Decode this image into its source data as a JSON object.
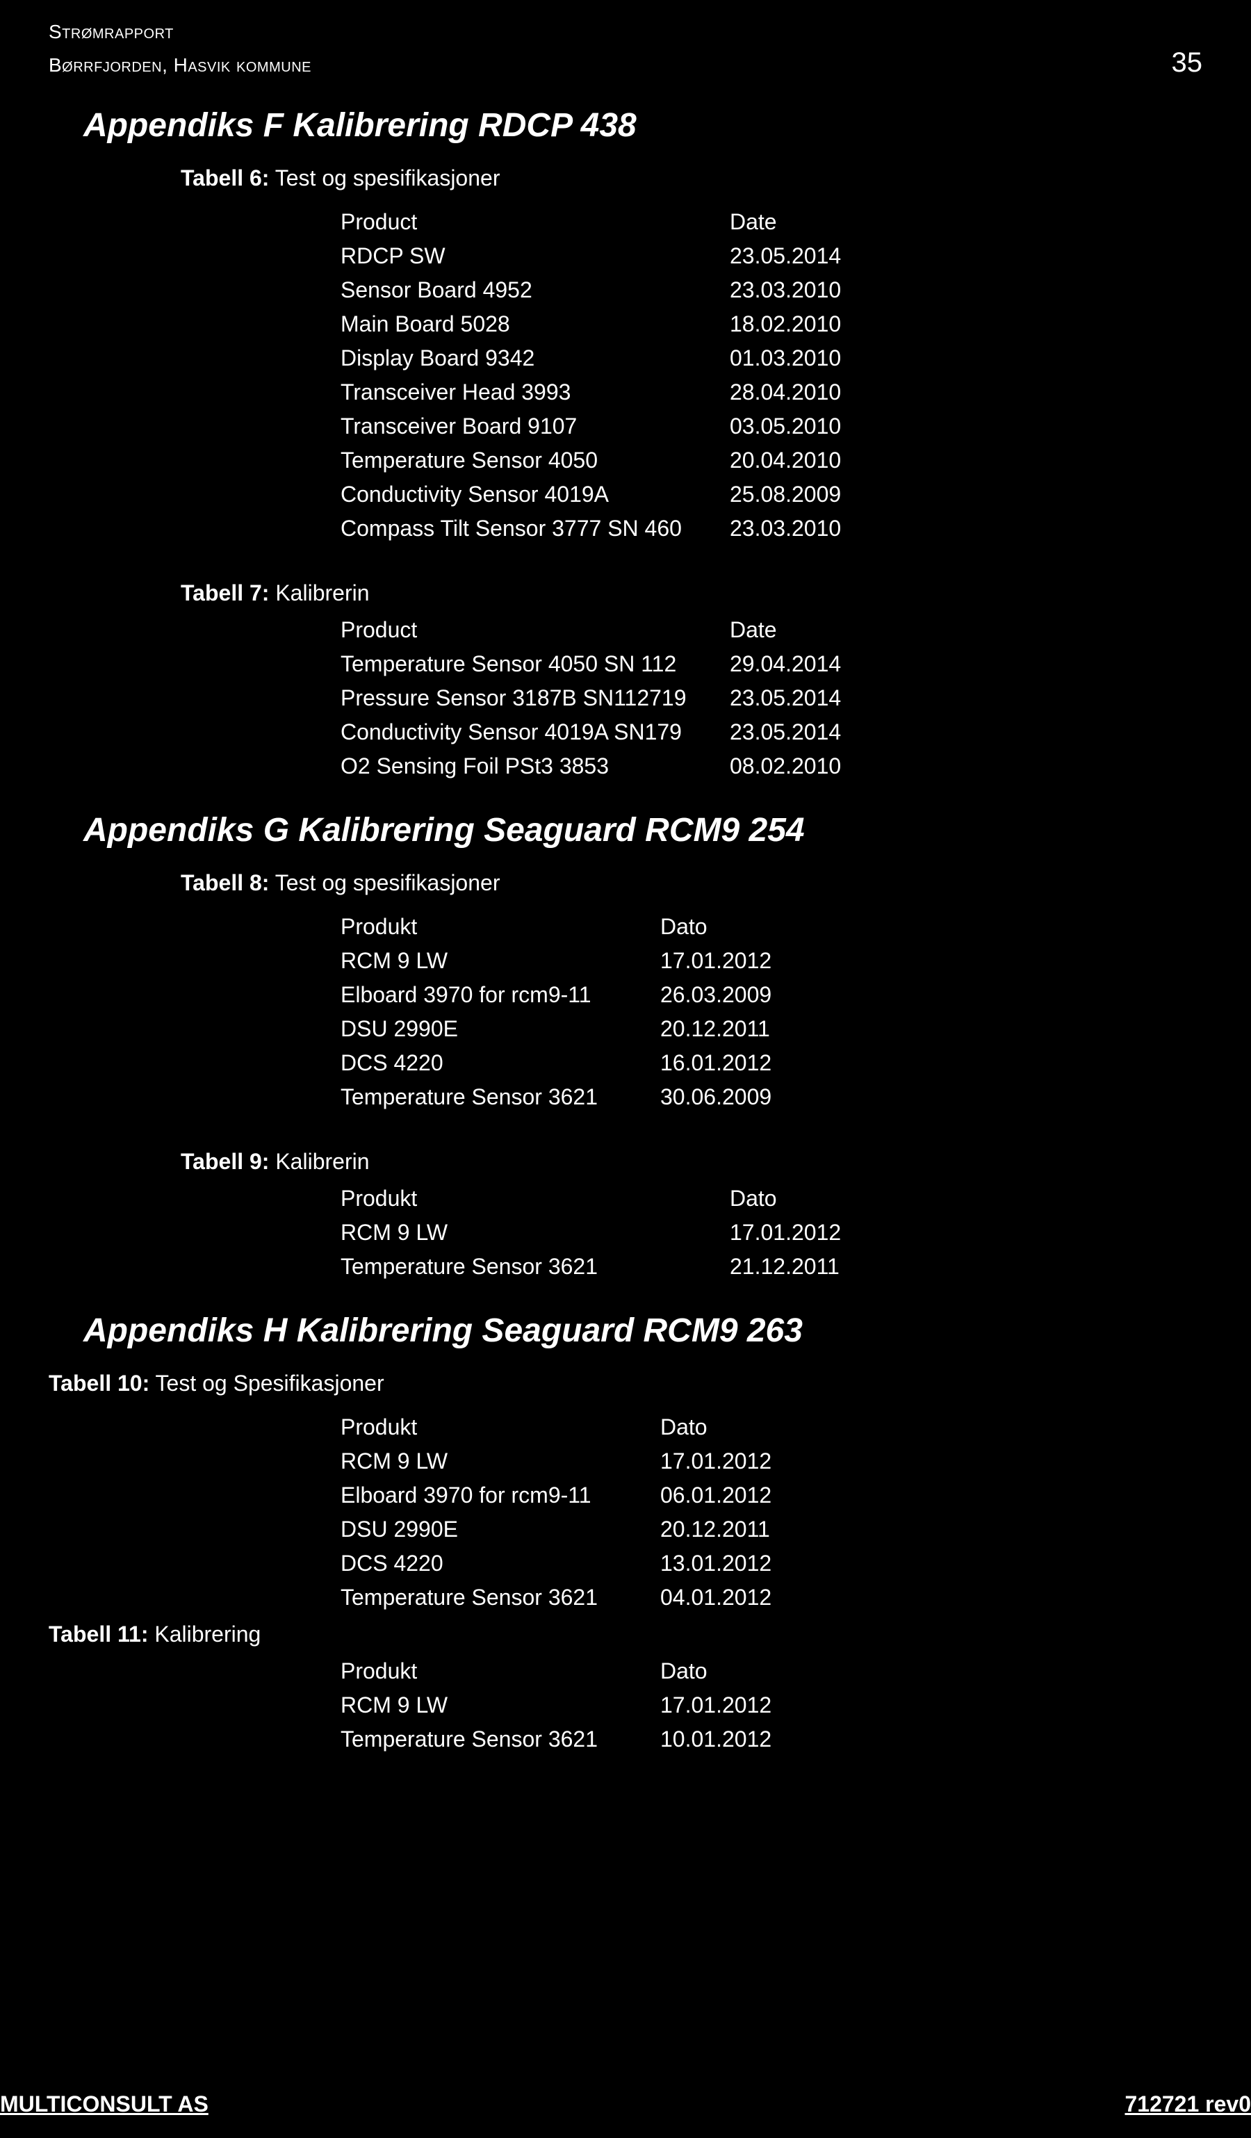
{
  "header": {
    "line1": "Strømrapport",
    "line2": "Børrfjorden, Hasvik kommune",
    "page_number": "35"
  },
  "appendix_f": {
    "title": "Appendiks F  Kalibrering RDCP 438",
    "table6": {
      "caption_bold": "Tabell 6:",
      "caption_rest": " Test og spesifikasjoner",
      "header_product": "Product",
      "header_date": "Date",
      "rows": [
        {
          "product": "RDCP SW",
          "date": "23.05.2014"
        },
        {
          "product": "Sensor Board 4952",
          "date": "23.03.2010"
        },
        {
          "product": "Main Board 5028",
          "date": "18.02.2010"
        },
        {
          "product": "Display Board 9342",
          "date": "01.03.2010"
        },
        {
          "product": "Transceiver Head 3993",
          "date": "28.04.2010"
        },
        {
          "product": "Transceiver Board 9107",
          "date": "03.05.2010"
        },
        {
          "product": "Temperature Sensor 4050",
          "date": "20.04.2010"
        },
        {
          "product": "Conductivity Sensor 4019A",
          "date": "25.08.2009"
        },
        {
          "product": "Compass Tilt Sensor 3777 SN 460",
          "date": "23.03.2010"
        }
      ]
    },
    "table7": {
      "caption_bold": "Tabell 7:",
      "caption_rest": " Kalibrerin",
      "header_product": "Product",
      "header_date": "Date",
      "rows": [
        {
          "product": "Temperature Sensor 4050 SN 112",
          "date": "29.04.2014"
        },
        {
          "product": "Pressure Sensor 3187B SN112719",
          "date": "23.05.2014"
        },
        {
          "product": "Conductivity Sensor 4019A SN179",
          "date": "23.05.2014"
        },
        {
          "product": "O2 Sensing Foil PSt3 3853",
          "date": "08.02.2010"
        }
      ]
    }
  },
  "appendix_g": {
    "title": "Appendiks G  Kalibrering Seaguard RCM9 254",
    "table8": {
      "caption_bold": "Tabell 8:",
      "caption_rest": " Test og spesifikasjoner",
      "header_product": "Produkt",
      "header_date": "Dato",
      "rows": [
        {
          "product": "RCM 9 LW",
          "date": "17.01.2012"
        },
        {
          "product": "Elboard 3970 for rcm9-11",
          "date": "26.03.2009"
        },
        {
          "product": "DSU 2990E",
          "date": "20.12.2011"
        },
        {
          "product": "DCS 4220",
          "date": "16.01.2012"
        },
        {
          "product": "Temperature Sensor 3621",
          "date": "30.06.2009"
        }
      ]
    },
    "table9": {
      "caption_bold": "Tabell 9:",
      "caption_rest": " Kalibrerin",
      "header_product": "Produkt",
      "header_date": "Dato",
      "rows": [
        {
          "product": "RCM 9 LW",
          "date": "17.01.2012"
        },
        {
          "product": "Temperature Sensor 3621",
          "date": "21.12.2011"
        }
      ]
    }
  },
  "appendix_h": {
    "title": "Appendiks H  Kalibrering Seaguard RCM9 263",
    "table10": {
      "caption_bold": "Tabell 10:",
      "caption_rest": " Test og Spesifikasjoner",
      "header_product": "Produkt",
      "header_date": "Dato",
      "rows": [
        {
          "product": "RCM 9 LW",
          "date": "17.01.2012"
        },
        {
          "product": "Elboard 3970 for rcm9-11",
          "date": "06.01.2012"
        },
        {
          "product": "DSU 2990E",
          "date": "20.12.2011"
        },
        {
          "product": "DCS 4220",
          "date": "13.01.2012"
        },
        {
          "product": "Temperature Sensor 3621",
          "date": "04.01.2012"
        }
      ]
    },
    "table11": {
      "caption_bold": "Tabell 11:",
      "caption_rest": " Kalibrering",
      "header_product": "Produkt",
      "header_date": "Dato",
      "rows": [
        {
          "product": "RCM 9 LW",
          "date": "17.01.2012"
        },
        {
          "product": "Temperature Sensor 3621",
          "date": "10.01.2012"
        }
      ]
    }
  },
  "footer": {
    "left": "MULTICONSULT AS",
    "right": "712721 rev0"
  }
}
